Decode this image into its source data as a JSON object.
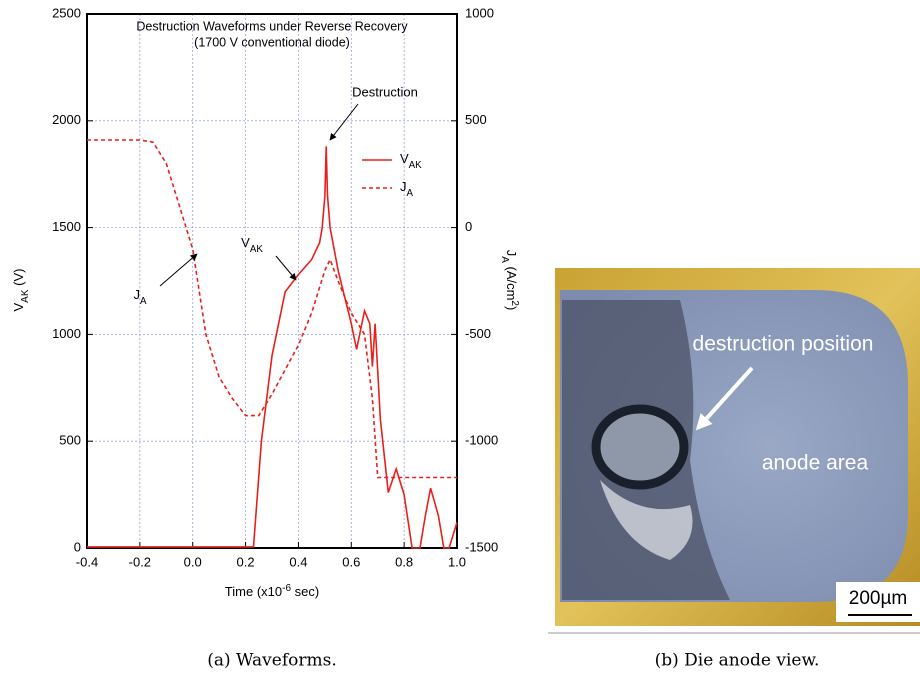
{
  "chart_data": {
    "type": "line",
    "title": [
      "Destruction Waveforms under Reverse Recovery",
      "(1700 V conventional diode)"
    ],
    "xlabel": {
      "pre": "Time  (x10",
      "sup": "-6",
      "post": " sec)"
    },
    "ylabel": {
      "base": "V",
      "sub": "AK",
      "unit": "  (V)"
    },
    "y2label": {
      "base": "J",
      "sub": "A",
      "mid": "  (A/cm",
      "sup": "2",
      "post": ")"
    },
    "xlim": [
      -0.4,
      1.0
    ],
    "xticks": [
      -0.4,
      -0.2,
      {
        "value": 0,
        "label": "0.0"
      },
      0.2,
      0.4,
      0.6,
      0.8,
      {
        "value": 1,
        "label": "1.0"
      }
    ],
    "ylim": [
      0,
      2500
    ],
    "yticks": [
      0,
      500,
      1000,
      1500,
      2000,
      2500
    ],
    "y2lim": [
      -1500,
      1000
    ],
    "y2ticks": [
      -1500,
      -1000,
      -500,
      0,
      500,
      1000
    ],
    "grid": true,
    "series": [
      {
        "name": "VAK",
        "color": "#e8201c",
        "style": "solid",
        "x": [
          -0.4,
          -0.2,
          0.0,
          0.2,
          0.23,
          0.26,
          0.3,
          0.35,
          0.4,
          0.45,
          0.48,
          0.49,
          0.5,
          0.505,
          0.51,
          0.52,
          0.55,
          0.58,
          0.6,
          0.62,
          0.65,
          0.67,
          0.68,
          0.69,
          0.71,
          0.74,
          0.77,
          0.8,
          0.83,
          0.86,
          0.88,
          0.9,
          0.93,
          0.95,
          0.97,
          1.0
        ],
        "values": [
          5,
          5,
          5,
          5,
          5,
          500,
          900,
          1200,
          1280,
          1350,
          1430,
          1500,
          1650,
          1880,
          1650,
          1500,
          1300,
          1150,
          1050,
          930,
          1110,
          1050,
          850,
          1050,
          600,
          260,
          370,
          250,
          0,
          0,
          150,
          280,
          150,
          0,
          0,
          120
        ]
      },
      {
        "name": "JA",
        "color": "#e8201c",
        "style": "dashed",
        "axis": "y2",
        "x": [
          -0.4,
          -0.2,
          -0.15,
          -0.1,
          -0.05,
          0.0,
          0.05,
          0.1,
          0.15,
          0.2,
          0.25,
          0.3,
          0.4,
          0.45,
          0.5,
          0.52,
          0.55,
          0.6,
          0.65,
          0.68,
          0.7,
          1.0
        ],
        "values": [
          410,
          410,
          400,
          300,
          100,
          -100,
          -500,
          -700,
          -800,
          -880,
          -880,
          -780,
          -550,
          -400,
          -200,
          -150,
          -250,
          -400,
          -500,
          -800,
          -1170,
          -1170
        ]
      }
    ],
    "legend": "upper right",
    "annotations": [
      "Destruction",
      "VAK",
      "JA"
    ]
  },
  "photo": {
    "labels": [
      "destruction position",
      "anode area"
    ],
    "scale_bar": "200µm"
  },
  "captions": [
    "(a) Waveforms.",
    "(b) Die anode view."
  ]
}
